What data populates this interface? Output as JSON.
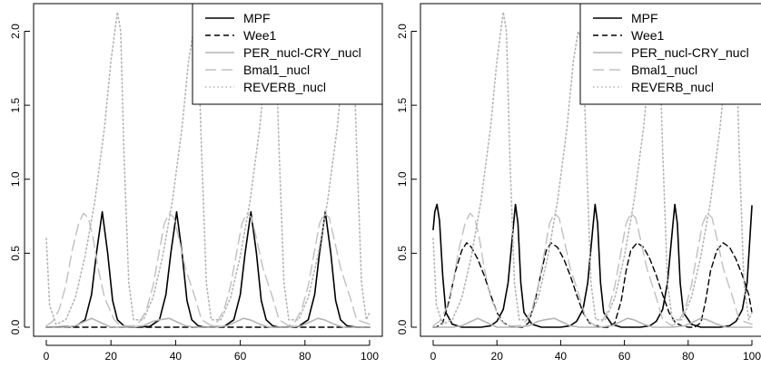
{
  "chart_data": [
    {
      "type": "line",
      "title": "",
      "xlabel": "",
      "ylabel": "",
      "xlim": [
        0,
        100
      ],
      "ylim": [
        0,
        2.15
      ],
      "xticks": [
        "0",
        "20",
        "40",
        "60",
        "80",
        "100"
      ],
      "yticks": [
        "0.0",
        "0.5",
        "1.0",
        "1.5",
        "2.0"
      ],
      "legend_position": "top-right",
      "series": [
        {
          "name": "MPF",
          "style": "solid",
          "color": "#000000",
          "x": [
            0,
            9,
            12,
            14,
            15.5,
            17.3,
            19,
            20.5,
            22,
            24,
            26,
            32,
            35,
            37,
            38.5,
            40.3,
            42,
            43.5,
            45,
            47,
            49,
            55,
            58,
            60,
            61.5,
            63.3,
            65,
            66.5,
            68,
            70,
            72,
            78,
            81,
            83,
            84.5,
            86.3,
            88,
            89.5,
            91,
            93,
            96,
            100
          ],
          "y": [
            0,
            0.005,
            0.05,
            0.22,
            0.5,
            0.78,
            0.5,
            0.18,
            0.05,
            0.01,
            0,
            0.005,
            0.05,
            0.22,
            0.5,
            0.78,
            0.5,
            0.18,
            0.05,
            0.01,
            0,
            0.005,
            0.05,
            0.22,
            0.5,
            0.78,
            0.5,
            0.18,
            0.05,
            0.01,
            0,
            0.005,
            0.05,
            0.22,
            0.5,
            0.78,
            0.5,
            0.18,
            0.05,
            0.01,
            0,
            0
          ]
        },
        {
          "name": "Wee1",
          "style": "dashed",
          "color": "#000000",
          "x": [
            0,
            100
          ],
          "y": [
            0,
            0
          ]
        },
        {
          "name": "PER_nucl-CRY_nucl",
          "style": "solid",
          "color": "#b4b4b4",
          "x": [
            0,
            6,
            9,
            12,
            14,
            17,
            20,
            26,
            30,
            33,
            35,
            38,
            40,
            43,
            46,
            52,
            56,
            59,
            61,
            63,
            66,
            69,
            75,
            79,
            82,
            84,
            86,
            89,
            92,
            100
          ],
          "y": [
            0,
            0,
            0.01,
            0.04,
            0.06,
            0.03,
            0,
            0,
            0.01,
            0.04,
            0.05,
            0.06,
            0.04,
            0.01,
            0,
            0,
            0.01,
            0.04,
            0.06,
            0.05,
            0.02,
            0,
            0,
            0.01,
            0.04,
            0.06,
            0.05,
            0.02,
            0,
            0
          ]
        },
        {
          "name": "Bmal1_nucl",
          "style": "longdash",
          "color": "#c0c0c0",
          "x": [
            0,
            2,
            4,
            6,
            8,
            10,
            11.5,
            13,
            14.5,
            16,
            18,
            21,
            23,
            27,
            29,
            31,
            33,
            35,
            36.5,
            38,
            39.5,
            41,
            43,
            46,
            48,
            51,
            53,
            55,
            57,
            59,
            60.5,
            62,
            63.5,
            65,
            67,
            70,
            72,
            75,
            77,
            79,
            81,
            83,
            84.5,
            86,
            87.5,
            89,
            91,
            94,
            96,
            100
          ],
          "y": [
            0.01,
            0.04,
            0.12,
            0.28,
            0.52,
            0.7,
            0.77,
            0.74,
            0.6,
            0.4,
            0.2,
            0.05,
            0.01,
            0.01,
            0.04,
            0.12,
            0.28,
            0.52,
            0.7,
            0.77,
            0.74,
            0.6,
            0.4,
            0.2,
            0.05,
            0.01,
            0.04,
            0.12,
            0.28,
            0.52,
            0.7,
            0.77,
            0.74,
            0.6,
            0.4,
            0.2,
            0.05,
            0.01,
            0.04,
            0.12,
            0.28,
            0.52,
            0.7,
            0.77,
            0.74,
            0.6,
            0.4,
            0.2,
            0.05,
            0.02
          ]
        },
        {
          "name": "REVERB_nucl",
          "style": "dotted",
          "color": "#b4b4b4",
          "x": [
            0,
            1,
            3,
            6,
            9,
            12,
            15,
            18,
            20,
            22,
            23,
            24,
            25.5,
            27,
            30,
            33,
            36,
            39,
            42,
            44,
            45.5,
            47,
            48,
            49.5,
            51,
            54,
            57,
            60,
            63,
            66,
            68,
            69.5,
            71,
            72,
            73.5,
            75,
            78,
            81,
            84,
            87,
            90,
            92,
            93.5,
            95,
            96,
            97.5,
            99,
            100
          ],
          "y": [
            0.6,
            0.15,
            0.02,
            0.05,
            0.2,
            0.48,
            0.85,
            1.35,
            1.8,
            2.13,
            2.0,
            1.2,
            0.3,
            0.05,
            0.05,
            0.2,
            0.48,
            0.85,
            1.35,
            1.8,
            2.0,
            1.9,
            1.2,
            0.3,
            0.05,
            0.05,
            0.2,
            0.48,
            0.85,
            1.35,
            1.8,
            2.0,
            1.9,
            1.2,
            0.3,
            0.05,
            0.05,
            0.2,
            0.48,
            0.85,
            1.35,
            1.8,
            2.0,
            1.9,
            1.2,
            0.3,
            0.05,
            0.1
          ]
        }
      ]
    },
    {
      "type": "line",
      "title": "",
      "xlabel": "",
      "ylabel": "",
      "xlim": [
        0,
        100
      ],
      "ylim": [
        0,
        2.15
      ],
      "xticks": [
        "0",
        "20",
        "40",
        "60",
        "80",
        "100"
      ],
      "yticks": [
        "0.0",
        "0.5",
        "1.0",
        "1.5",
        "2.0"
      ],
      "legend_position": "top-right",
      "series": [
        {
          "name": "MPF",
          "style": "solid",
          "color": "#000000",
          "x": [
            0,
            0.5,
            1.2,
            2,
            3,
            4,
            6,
            9,
            12,
            15,
            18,
            20,
            22,
            23.5,
            25,
            25.8,
            26.6,
            27.5,
            28.5,
            31,
            34,
            37,
            40,
            43,
            45,
            47,
            48.5,
            50,
            50.8,
            51.6,
            52.5,
            53.5,
            56,
            59,
            62,
            65,
            68,
            70,
            72,
            73.5,
            75,
            75.8,
            76.6,
            77.5,
            78.5,
            81,
            84,
            87,
            90,
            93,
            95,
            97,
            98.5,
            100
          ],
          "y": [
            0.66,
            0.78,
            0.83,
            0.72,
            0.35,
            0.1,
            0.02,
            0,
            0,
            0,
            0.01,
            0.04,
            0.12,
            0.3,
            0.65,
            0.83,
            0.7,
            0.3,
            0.1,
            0.02,
            0,
            0,
            0,
            0.01,
            0.04,
            0.12,
            0.3,
            0.65,
            0.83,
            0.7,
            0.3,
            0.1,
            0.02,
            0,
            0,
            0,
            0.01,
            0.04,
            0.12,
            0.3,
            0.65,
            0.83,
            0.7,
            0.3,
            0.1,
            0.02,
            0,
            0,
            0,
            0.01,
            0.04,
            0.12,
            0.3,
            0.82
          ]
        },
        {
          "name": "Wee1",
          "style": "dashed",
          "color": "#000000",
          "x": [
            0,
            1,
            3,
            5,
            7,
            9,
            10.5,
            12,
            14,
            16,
            18,
            20,
            22,
            24,
            26,
            28,
            30,
            32,
            34,
            35.5,
            37,
            39,
            41,
            43,
            45,
            47,
            49,
            51,
            53,
            55,
            57,
            59,
            60.5,
            62,
            64,
            66,
            68,
            70,
            72,
            74,
            76,
            78,
            80,
            82,
            84,
            85.5,
            87,
            89,
            91,
            93,
            95,
            97,
            99,
            100
          ],
          "y": [
            0,
            0,
            0.03,
            0.18,
            0.38,
            0.52,
            0.57,
            0.54,
            0.46,
            0.35,
            0.22,
            0.1,
            0.03,
            0.01,
            0,
            0,
            0.03,
            0.18,
            0.38,
            0.52,
            0.57,
            0.54,
            0.46,
            0.35,
            0.22,
            0.1,
            0.03,
            0.01,
            0,
            0,
            0.03,
            0.18,
            0.38,
            0.52,
            0.57,
            0.54,
            0.46,
            0.35,
            0.22,
            0.1,
            0.03,
            0.01,
            0,
            0,
            0.03,
            0.18,
            0.38,
            0.52,
            0.57,
            0.54,
            0.46,
            0.35,
            0.22,
            0.1
          ]
        },
        {
          "name": "PER_nucl-CRY_nucl",
          "style": "solid",
          "color": "#b4b4b4",
          "x": [
            0,
            6,
            9,
            12,
            14,
            17,
            20,
            26,
            30,
            33,
            35,
            38,
            40,
            43,
            46,
            52,
            56,
            59,
            61,
            63,
            66,
            69,
            75,
            79,
            82,
            84,
            86,
            89,
            92,
            100
          ],
          "y": [
            0,
            0,
            0.01,
            0.04,
            0.06,
            0.03,
            0,
            0,
            0.01,
            0.04,
            0.05,
            0.06,
            0.04,
            0.01,
            0,
            0,
            0.01,
            0.04,
            0.06,
            0.05,
            0.02,
            0,
            0,
            0.01,
            0.04,
            0.06,
            0.05,
            0.02,
            0,
            0
          ]
        },
        {
          "name": "Bmal1_nucl",
          "style": "longdash",
          "color": "#c0c0c0",
          "x": [
            0,
            2,
            4,
            6,
            8,
            10,
            11.5,
            13,
            14.5,
            16,
            18,
            21,
            23,
            27,
            29,
            31,
            33,
            35,
            36.5,
            38,
            39.5,
            41,
            43,
            46,
            48,
            51,
            53,
            55,
            57,
            59,
            60.5,
            62,
            63.5,
            65,
            67,
            70,
            72,
            75,
            77,
            79,
            81,
            83,
            84.5,
            86,
            87.5,
            89,
            91,
            94,
            96,
            100
          ],
          "y": [
            0.01,
            0.04,
            0.12,
            0.28,
            0.52,
            0.7,
            0.77,
            0.74,
            0.6,
            0.4,
            0.2,
            0.05,
            0.01,
            0.01,
            0.04,
            0.12,
            0.28,
            0.52,
            0.7,
            0.77,
            0.74,
            0.6,
            0.4,
            0.2,
            0.05,
            0.01,
            0.04,
            0.12,
            0.28,
            0.52,
            0.7,
            0.77,
            0.74,
            0.6,
            0.4,
            0.2,
            0.05,
            0.01,
            0.04,
            0.12,
            0.28,
            0.52,
            0.7,
            0.77,
            0.74,
            0.6,
            0.4,
            0.2,
            0.05,
            0.02
          ]
        },
        {
          "name": "REVERB_nucl",
          "style": "dotted",
          "color": "#b4b4b4",
          "x": [
            0,
            1,
            3,
            6,
            9,
            12,
            15,
            18,
            20,
            22,
            23,
            24,
            25.5,
            27,
            30,
            33,
            36,
            39,
            42,
            44,
            45.5,
            47,
            48,
            49.5,
            51,
            54,
            57,
            60,
            63,
            66,
            68,
            69.5,
            71,
            72,
            73.5,
            75,
            78,
            81,
            84,
            87,
            90,
            92,
            93.5,
            95,
            96,
            97.5,
            99,
            100
          ],
          "y": [
            0.6,
            0.15,
            0.02,
            0.05,
            0.2,
            0.48,
            0.85,
            1.35,
            1.8,
            2.13,
            2.0,
            1.2,
            0.3,
            0.05,
            0.05,
            0.2,
            0.48,
            0.85,
            1.35,
            1.8,
            2.0,
            1.9,
            1.2,
            0.3,
            0.05,
            0.05,
            0.2,
            0.48,
            0.85,
            1.35,
            1.8,
            2.0,
            1.9,
            1.2,
            0.3,
            0.05,
            0.05,
            0.2,
            0.48,
            0.85,
            1.35,
            1.8,
            2.0,
            1.9,
            1.2,
            0.3,
            0.05,
            0.1
          ]
        }
      ]
    }
  ]
}
